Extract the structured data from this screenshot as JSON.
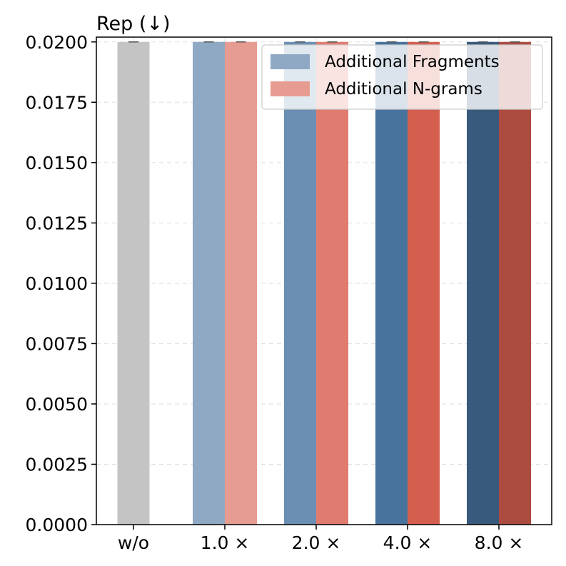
{
  "chart_data": {
    "type": "bar",
    "title": "Rep (↓)",
    "xlabel": "",
    "ylabel": "",
    "categories": [
      "w/o",
      "1.0 ×",
      "2.0 ×",
      "4.0 ×",
      "8.0 ×"
    ],
    "ylim": [
      0,
      0.0202
    ],
    "yticks": [
      "0.0000",
      "0.0025",
      "0.0050",
      "0.0075",
      "0.0100",
      "0.0125",
      "0.0150",
      "0.0175",
      "0.0200"
    ],
    "grid": true,
    "legend_position": "top-right",
    "baseline": {
      "category": "w/o",
      "value": 0.02,
      "color": "#c4c4c4"
    },
    "series": [
      {
        "name": "Additional Fragments",
        "legend_color": "#8fa9c4",
        "values": [
          null,
          0.02,
          0.02,
          0.02,
          0.02
        ],
        "colors": [
          "#c4c4c4",
          "#8fa9c4",
          "#6a8fb3",
          "#47739d",
          "#385a7c"
        ]
      },
      {
        "name": "Additional N-grams",
        "legend_color": "#e79c92",
        "values": [
          null,
          0.02,
          0.02,
          0.02,
          0.02
        ],
        "colors": [
          "#c4c4c4",
          "#e79c92",
          "#e07b6f",
          "#d45f4f",
          "#ac4c40"
        ]
      }
    ]
  }
}
